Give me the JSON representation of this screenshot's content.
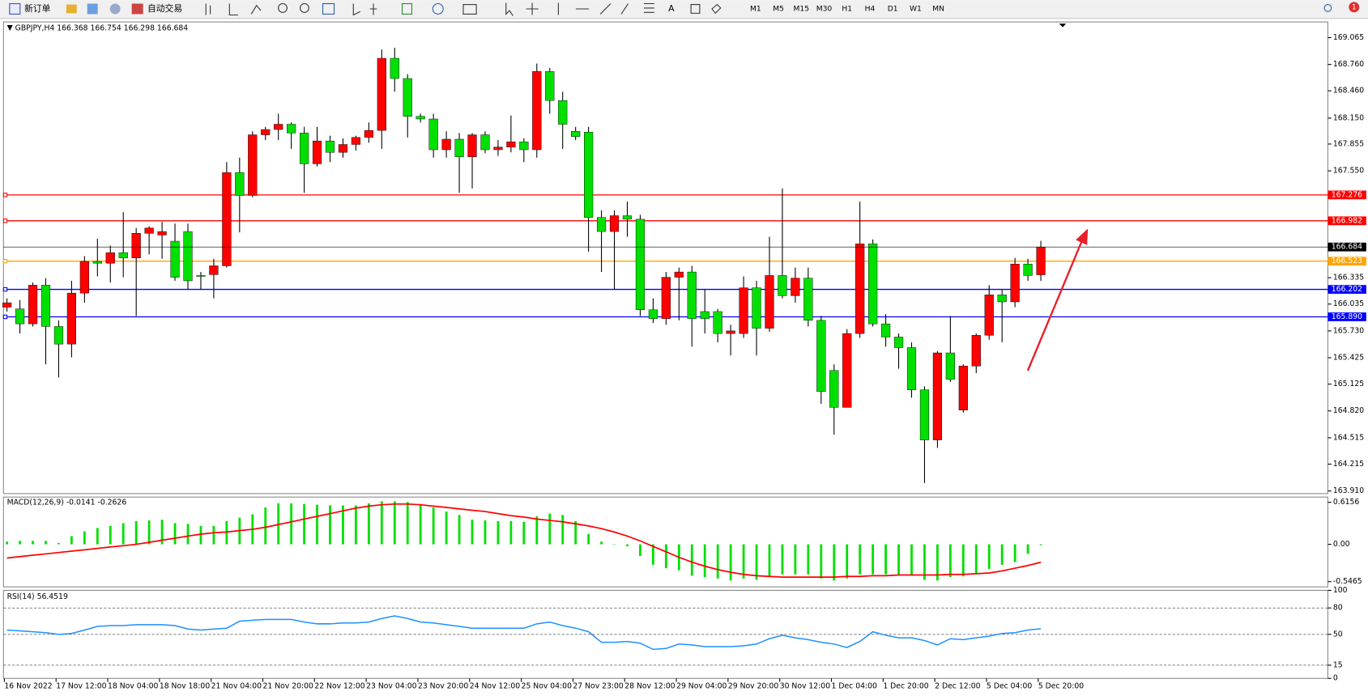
{
  "toolbar": {
    "new_order": "新订单",
    "auto_trading": "自动交易",
    "timeframes": [
      "M1",
      "M5",
      "M15",
      "M30",
      "H1",
      "H4",
      "D1",
      "W1",
      "MN"
    ],
    "badge": "1"
  },
  "chart_data": [
    {
      "type": "candlestick",
      "title": "GBPJPY,H4",
      "up_color": "#ff0000",
      "down_color": "#00e000",
      "categories": [
        "16 Nov 2022",
        null,
        null,
        null,
        "17 Nov 12:00",
        null,
        null,
        null,
        "18 Nov 04:00",
        null,
        null,
        null,
        "18 Nov 18:00",
        null,
        null,
        null,
        "21 Nov 04:00",
        null,
        null,
        null,
        "21 Nov 20:00",
        null,
        null,
        null,
        "22 Nov 12:00",
        null,
        null,
        null,
        "23 Nov 04:00",
        null,
        null,
        null,
        "23 Nov 20:00",
        null,
        null,
        null,
        "24 Nov 12:00",
        null,
        null,
        null,
        "25 Nov 04:00",
        null,
        null,
        null,
        "27 Nov 23:00",
        null,
        null,
        null,
        "28 Nov 12:00",
        null,
        null,
        null,
        "29 Nov 04:00",
        null,
        null,
        null,
        "29 Nov 20:00",
        null,
        null,
        null,
        "30 Nov 12:00",
        null,
        null,
        null,
        "1 Dec 04:00",
        null,
        null,
        null,
        "1 Dec 20:00",
        null,
        null,
        null,
        "2 Dec 12:00",
        null,
        null,
        null,
        "5 Dec 04:00",
        null,
        null,
        null,
        "5 Dec 20:00"
      ],
      "open": [
        166.0,
        165.98,
        165.81,
        166.25,
        165.78,
        165.58,
        166.16,
        166.52,
        166.5,
        166.62,
        166.56,
        166.84,
        166.82,
        166.75,
        166.86,
        166.36,
        166.37,
        166.47,
        167.53,
        167.27,
        167.96,
        168.02,
        168.08,
        167.98,
        167.63,
        167.89,
        167.76,
        167.85,
        167.93,
        168.01,
        168.83,
        168.6,
        168.17,
        168.14,
        167.79,
        167.91,
        167.71,
        167.96,
        167.79,
        167.82,
        167.88,
        167.79,
        168.68,
        168.35,
        168.0,
        167.99,
        167.02,
        166.86,
        167.04,
        167.0,
        165.97,
        165.87,
        166.34,
        166.4,
        165.95,
        165.95,
        165.7,
        165.7,
        166.22,
        165.76,
        166.36,
        166.13,
        166.33,
        165.85,
        165.28,
        164.86,
        165.7,
        166.72,
        165.81,
        165.66,
        165.54,
        165.06,
        164.49,
        165.48,
        164.83,
        165.33,
        165.68,
        166.14,
        166.06,
        166.49,
        166.368
      ],
      "high": [
        166.1,
        166.08,
        166.28,
        166.33,
        165.85,
        166.3,
        166.58,
        166.78,
        166.7,
        167.08,
        166.9,
        166.92,
        166.97,
        166.95,
        166.95,
        166.4,
        166.55,
        167.65,
        167.7,
        168.0,
        168.05,
        168.2,
        168.1,
        168.05,
        168.05,
        167.95,
        167.92,
        167.95,
        168.1,
        168.93,
        168.95,
        168.65,
        168.2,
        168.2,
        168.0,
        167.98,
        167.98,
        168.0,
        167.9,
        168.18,
        167.92,
        168.77,
        168.72,
        168.45,
        168.05,
        168.05,
        167.1,
        167.1,
        167.2,
        167.05,
        166.1,
        166.4,
        166.45,
        166.47,
        166.2,
        165.98,
        165.8,
        166.35,
        166.3,
        166.8,
        167.35,
        166.45,
        166.45,
        165.9,
        165.35,
        165.75,
        167.2,
        166.77,
        165.92,
        165.7,
        165.6,
        165.1,
        165.5,
        165.9,
        165.35,
        165.7,
        166.25,
        166.2,
        166.56,
        166.55,
        166.754
      ],
      "low": [
        165.95,
        165.7,
        165.78,
        165.35,
        165.2,
        165.43,
        166.05,
        166.35,
        166.28,
        166.34,
        165.9,
        166.6,
        166.55,
        166.3,
        166.2,
        166.2,
        166.1,
        166.45,
        166.85,
        167.25,
        167.9,
        167.9,
        167.8,
        167.3,
        167.6,
        167.65,
        167.7,
        167.78,
        167.87,
        167.8,
        168.45,
        167.93,
        168.1,
        167.7,
        167.7,
        167.3,
        167.35,
        167.75,
        167.72,
        167.76,
        167.65,
        167.7,
        168.2,
        167.8,
        167.9,
        166.63,
        166.4,
        166.2,
        166.8,
        165.9,
        165.82,
        165.8,
        165.85,
        165.55,
        165.7,
        165.6,
        165.45,
        165.65,
        165.45,
        165.72,
        166.1,
        166.05,
        165.78,
        164.9,
        164.55,
        164.86,
        165.65,
        165.78,
        165.55,
        165.3,
        164.97,
        164.0,
        164.4,
        165.15,
        164.8,
        165.25,
        165.63,
        165.6,
        166.0,
        166.3,
        166.298
      ],
      "close": [
        166.05,
        165.81,
        166.25,
        165.78,
        165.58,
        166.16,
        166.52,
        166.5,
        166.62,
        166.56,
        166.84,
        166.9,
        166.86,
        166.34,
        166.3,
        166.35,
        166.47,
        167.53,
        167.27,
        167.96,
        168.02,
        168.08,
        167.98,
        167.63,
        167.89,
        167.76,
        167.85,
        167.93,
        168.01,
        168.83,
        168.6,
        168.17,
        168.14,
        167.79,
        167.91,
        167.71,
        167.96,
        167.79,
        167.82,
        167.88,
        167.79,
        168.68,
        168.35,
        168.08,
        167.94,
        167.02,
        166.86,
        167.04,
        167.0,
        165.97,
        165.87,
        166.34,
        166.4,
        165.87,
        165.87,
        165.7,
        165.73,
        166.22,
        165.76,
        166.36,
        166.13,
        166.33,
        165.85,
        165.04,
        164.86,
        165.7,
        166.72,
        165.81,
        165.66,
        165.54,
        165.06,
        164.49,
        165.48,
        165.18,
        165.33,
        165.68,
        166.14,
        166.06,
        166.49,
        166.36,
        166.684
      ],
      "ylim": [
        163.88,
        169.243
      ],
      "yticks": [
        169.065,
        {
          "value": 168.76,
          "label": "168.760"
        },
        {
          "value": 168.46,
          "label": "168.460"
        },
        {
          "value": 168.15,
          "label": "168.150"
        },
        167.855,
        {
          "value": 167.55,
          "label": "167.550"
        },
        166.335,
        166.035,
        {
          "value": 165.73,
          "label": "165.730"
        },
        165.425,
        165.125,
        {
          "value": 164.82,
          "label": "164.820"
        },
        164.515,
        164.215,
        {
          "value": 163.91,
          "label": "163.910"
        }
      ],
      "hlines": [
        {
          "value": 167.276,
          "color": "#ff0000"
        },
        {
          "value": 166.982,
          "color": "#ff0000"
        },
        {
          "value": 166.523,
          "color": "#ffa500"
        },
        {
          "value": 166.202,
          "color": "#0000ff"
        },
        {
          "value": {
            "value": 165.89,
            "label": "165.890"
          },
          "color": "#0000ff"
        }
      ]
    },
    {
      "type": "macd",
      "title": "MACD(12,26,9)",
      "series": [
        {
          "color": "#00e000",
          "values": [
            0.04,
            0.05,
            0.05,
            0.05,
            0.02,
            0.12,
            0.19,
            0.24,
            0.27,
            0.31,
            0.34,
            0.35,
            0.36,
            0.31,
            0.3,
            0.27,
            0.27,
            0.34,
            0.39,
            0.44,
            0.54,
            0.6,
            0.6,
            0.59,
            0.58,
            0.57,
            0.57,
            0.57,
            0.6,
            0.63,
            0.63,
            0.62,
            0.59,
            0.54,
            0.48,
            0.43,
            0.36,
            0.35,
            0.34,
            0.34,
            0.33,
            0.41,
            0.45,
            0.43,
            0.34,
            0.15,
            0.04,
            0.0,
            -0.03,
            -0.17,
            -0.3,
            -0.35,
            -0.38,
            -0.46,
            -0.48,
            -0.5,
            -0.53,
            -0.5,
            -0.52,
            -0.47,
            -0.44,
            -0.44,
            -0.44,
            -0.5,
            -0.53,
            -0.5,
            -0.44,
            -0.44,
            -0.44,
            -0.44,
            -0.46,
            -0.52,
            -0.53,
            -0.48,
            -0.47,
            -0.43,
            -0.36,
            -0.3,
            -0.26,
            -0.14,
            -0.0141
          ]
        },
        {
          "color": "#ff0000",
          "values": [
            -0.2,
            -0.18,
            -0.16,
            -0.14,
            -0.12,
            -0.1,
            -0.08,
            -0.06,
            -0.04,
            -0.02,
            0.0,
            0.03,
            0.06,
            0.09,
            0.12,
            0.15,
            0.17,
            0.18,
            0.2,
            0.22,
            0.25,
            0.29,
            0.33,
            0.37,
            0.41,
            0.45,
            0.49,
            0.53,
            0.56,
            0.58,
            0.59,
            0.59,
            0.58,
            0.56,
            0.54,
            0.52,
            0.5,
            0.48,
            0.45,
            0.42,
            0.4,
            0.37,
            0.35,
            0.33,
            0.3,
            0.27,
            0.23,
            0.18,
            0.12,
            0.05,
            -0.03,
            -0.11,
            -0.19,
            -0.26,
            -0.32,
            -0.37,
            -0.41,
            -0.44,
            -0.46,
            -0.47,
            -0.48,
            -0.48,
            -0.48,
            -0.48,
            -0.48,
            -0.47,
            -0.47,
            -0.46,
            -0.46,
            -0.45,
            -0.45,
            -0.45,
            -0.45,
            -0.44,
            -0.44,
            -0.43,
            -0.42,
            -0.39,
            -0.35,
            -0.31,
            -0.2626
          ]
        }
      ],
      "ylim": [
        -0.6231,
        0.6922
      ],
      "yticks": [
        0.6156,
        {
          "value": 0,
          "label": "0.00"
        },
        -0.5465
      ]
    },
    {
      "type": "rsi",
      "title": "RSI(14)",
      "series": [
        {
          "color": "#1e90ff",
          "values": [
            55,
            54,
            53,
            52,
            50,
            51,
            55,
            59,
            60,
            60,
            61,
            61,
            61,
            60,
            56,
            55,
            56,
            57,
            65,
            66,
            67,
            67,
            67,
            64,
            62,
            62,
            63,
            63,
            64,
            68,
            71,
            68,
            64,
            63,
            61,
            59,
            57,
            57,
            57,
            57,
            57,
            62,
            64,
            60,
            57,
            53,
            41,
            41,
            42,
            40,
            33,
            34,
            39,
            38,
            36,
            36,
            36,
            37,
            39,
            45,
            49,
            46,
            44,
            41,
            39,
            35,
            42,
            53,
            49,
            46,
            46,
            43,
            38,
            45,
            44,
            46,
            48,
            51,
            52,
            55,
            56.4519
          ]
        }
      ],
      "ylim": [
        0,
        100
      ],
      "yticks": [
        100,
        80,
        50,
        15,
        0
      ]
    }
  ]
}
